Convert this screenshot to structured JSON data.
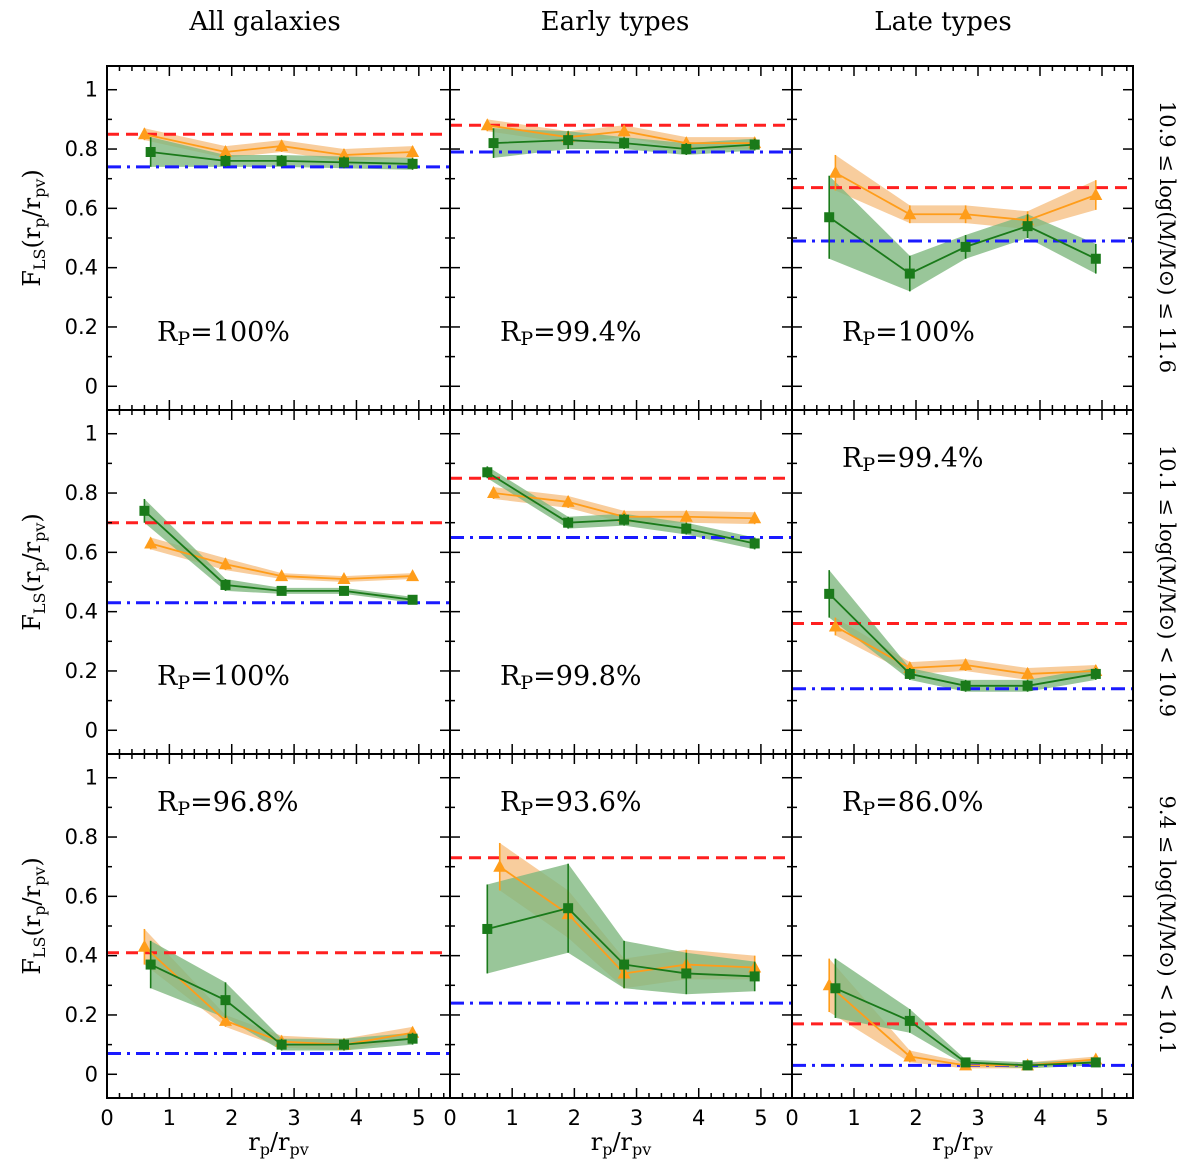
{
  "figure": {
    "column_titles": [
      "All galaxies",
      "Early types",
      "Late types"
    ],
    "row_labels": [
      "10.9 ≤ log(M/M⊙) ≤ 11.6",
      "10.1 ≤ log(M/M⊙) < 10.9",
      "9.4 ≤ log(M/M⊙) < 10.1"
    ],
    "xlabel": "rp/rpv",
    "ylabel": "FLS(rp/rpv)",
    "x_ticks": [
      0,
      1,
      2,
      3,
      4,
      5
    ],
    "y_ticks": [
      0,
      0.2,
      0.4,
      0.6,
      0.8,
      1
    ],
    "y_tick_labels": [
      "0",
      "0.2",
      "0.4",
      "0.6",
      "0.8",
      "1"
    ],
    "colors": {
      "orange": "#ff9d1a",
      "orange_band": "#f7c48c",
      "green": "#1a7a1a",
      "green_band": "#7fb87f",
      "red_dashed": "#ff2020",
      "blue_dashdot": "#1a1aff"
    }
  },
  "chart_data": [
    {
      "type": "line",
      "panel": "All galaxies / 10.9-11.6",
      "xlim": [
        0,
        5.5
      ],
      "ylim": [
        -0.08,
        1.08
      ],
      "rp_label": "RP=100%",
      "rp_pos": "bottom",
      "red_level": 0.85,
      "blue_level": 0.74,
      "series": [
        {
          "key": "orange",
          "x": [
            0.6,
            1.9,
            2.8,
            3.8,
            4.9
          ],
          "y": [
            0.85,
            0.79,
            0.81,
            0.78,
            0.79
          ],
          "err": [
            0.02,
            0.02,
            0.02,
            0.02,
            0.02
          ]
        },
        {
          "key": "green",
          "x": [
            0.7,
            1.9,
            2.8,
            3.8,
            4.9
          ],
          "y": [
            0.79,
            0.76,
            0.76,
            0.755,
            0.75
          ],
          "err": [
            0.05,
            0.02,
            0.02,
            0.02,
            0.02
          ]
        }
      ]
    },
    {
      "type": "line",
      "panel": "Early types / 10.9-11.6",
      "xlim": [
        0,
        5.5
      ],
      "ylim": [
        -0.08,
        1.08
      ],
      "rp_label": "RP=99.4%",
      "rp_pos": "bottom",
      "red_level": 0.88,
      "blue_level": 0.79,
      "series": [
        {
          "key": "orange",
          "x": [
            0.6,
            1.9,
            2.8,
            3.8,
            4.9
          ],
          "y": [
            0.88,
            0.84,
            0.86,
            0.82,
            0.82
          ],
          "err": [
            0.02,
            0.02,
            0.02,
            0.02,
            0.02
          ]
        },
        {
          "key": "green",
          "x": [
            0.7,
            1.9,
            2.8,
            3.8,
            4.9
          ],
          "y": [
            0.82,
            0.83,
            0.82,
            0.8,
            0.815
          ],
          "err": [
            0.05,
            0.03,
            0.02,
            0.02,
            0.02
          ]
        }
      ]
    },
    {
      "type": "line",
      "panel": "Late types / 10.9-11.6",
      "xlim": [
        0,
        5.5
      ],
      "ylim": [
        -0.08,
        1.08
      ],
      "rp_label": "RP=100%",
      "rp_pos": "bottom",
      "red_level": 0.67,
      "blue_level": 0.49,
      "series": [
        {
          "key": "orange",
          "x": [
            0.7,
            1.9,
            2.8,
            3.8,
            4.9
          ],
          "y": [
            0.72,
            0.58,
            0.58,
            0.56,
            0.645
          ],
          "err": [
            0.06,
            0.03,
            0.03,
            0.03,
            0.05
          ]
        },
        {
          "key": "green",
          "x": [
            0.6,
            1.9,
            2.8,
            3.8,
            4.9
          ],
          "y": [
            0.57,
            0.38,
            0.47,
            0.54,
            0.43
          ],
          "err": [
            0.14,
            0.06,
            0.04,
            0.04,
            0.05
          ]
        }
      ]
    },
    {
      "type": "line",
      "panel": "All galaxies / 10.1-10.9",
      "xlim": [
        0,
        5.5
      ],
      "ylim": [
        -0.08,
        1.08
      ],
      "rp_label": "RP=100%",
      "rp_pos": "bottom",
      "red_level": 0.7,
      "blue_level": 0.43,
      "series": [
        {
          "key": "orange",
          "x": [
            0.7,
            1.9,
            2.8,
            3.8,
            4.9
          ],
          "y": [
            0.63,
            0.56,
            0.52,
            0.51,
            0.52
          ],
          "err": [
            0.02,
            0.02,
            0.01,
            0.01,
            0.01
          ]
        },
        {
          "key": "green",
          "x": [
            0.6,
            1.9,
            2.8,
            3.8,
            4.9
          ],
          "y": [
            0.74,
            0.49,
            0.47,
            0.47,
            0.44
          ],
          "err": [
            0.04,
            0.02,
            0.01,
            0.01,
            0.01
          ]
        }
      ]
    },
    {
      "type": "line",
      "panel": "Early types / 10.1-10.9",
      "xlim": [
        0,
        5.5
      ],
      "ylim": [
        -0.08,
        1.08
      ],
      "rp_label": "RP=99.8%",
      "rp_pos": "bottom",
      "red_level": 0.85,
      "blue_level": 0.65,
      "series": [
        {
          "key": "orange",
          "x": [
            0.7,
            1.9,
            2.8,
            3.8,
            4.9
          ],
          "y": [
            0.8,
            0.77,
            0.72,
            0.72,
            0.715
          ],
          "err": [
            0.02,
            0.02,
            0.02,
            0.02,
            0.02
          ]
        },
        {
          "key": "green",
          "x": [
            0.6,
            1.9,
            2.8,
            3.8,
            4.9
          ],
          "y": [
            0.87,
            0.7,
            0.71,
            0.68,
            0.63
          ],
          "err": [
            0.02,
            0.02,
            0.02,
            0.02,
            0.02
          ]
        }
      ]
    },
    {
      "type": "line",
      "panel": "Late types / 10.1-10.9",
      "xlim": [
        0,
        5.5
      ],
      "ylim": [
        -0.08,
        1.08
      ],
      "rp_label": "RP=99.4%",
      "rp_pos": "top",
      "red_level": 0.36,
      "blue_level": 0.14,
      "series": [
        {
          "key": "orange",
          "x": [
            0.7,
            1.9,
            2.8,
            3.8,
            4.9
          ],
          "y": [
            0.35,
            0.21,
            0.22,
            0.19,
            0.2
          ],
          "err": [
            0.03,
            0.02,
            0.02,
            0.02,
            0.02
          ]
        },
        {
          "key": "green",
          "x": [
            0.6,
            1.9,
            2.8,
            3.8,
            4.9
          ],
          "y": [
            0.46,
            0.19,
            0.15,
            0.15,
            0.19
          ],
          "err": [
            0.08,
            0.02,
            0.02,
            0.02,
            0.02
          ]
        }
      ]
    },
    {
      "type": "line",
      "panel": "All galaxies / 9.4-10.1",
      "xlim": [
        0,
        5.5
      ],
      "ylim": [
        -0.08,
        1.08
      ],
      "rp_label": "RP=96.8%",
      "rp_pos": "top",
      "red_level": 0.41,
      "blue_level": 0.07,
      "series": [
        {
          "key": "orange",
          "x": [
            0.6,
            1.9,
            2.8,
            3.8,
            4.9
          ],
          "y": [
            0.43,
            0.18,
            0.11,
            0.1,
            0.14
          ],
          "err": [
            0.06,
            0.02,
            0.02,
            0.02,
            0.02
          ]
        },
        {
          "key": "green",
          "x": [
            0.7,
            1.9,
            2.8,
            3.8,
            4.9
          ],
          "y": [
            0.37,
            0.25,
            0.1,
            0.1,
            0.12
          ],
          "err": [
            0.08,
            0.06,
            0.02,
            0.02,
            0.02
          ]
        }
      ]
    },
    {
      "type": "line",
      "panel": "Early types / 9.4-10.1",
      "xlim": [
        0,
        5.5
      ],
      "ylim": [
        -0.08,
        1.08
      ],
      "rp_label": "RP=93.6%",
      "rp_pos": "top",
      "red_level": 0.73,
      "blue_level": 0.24,
      "series": [
        {
          "key": "orange",
          "x": [
            0.8,
            1.9,
            2.8,
            3.8,
            4.9
          ],
          "y": [
            0.7,
            0.54,
            0.34,
            0.37,
            0.36
          ],
          "err": [
            0.08,
            0.08,
            0.05,
            0.05,
            0.04
          ]
        },
        {
          "key": "green",
          "x": [
            0.6,
            1.9,
            2.8,
            3.8,
            4.9
          ],
          "y": [
            0.49,
            0.56,
            0.37,
            0.34,
            0.33
          ],
          "err": [
            0.15,
            0.15,
            0.08,
            0.07,
            0.05
          ]
        }
      ]
    },
    {
      "type": "line",
      "panel": "Late types / 9.4-10.1",
      "xlim": [
        0,
        5.5
      ],
      "ylim": [
        -0.08,
        1.08
      ],
      "rp_label": "RP=86.0%",
      "rp_pos": "top",
      "red_level": 0.17,
      "blue_level": 0.03,
      "series": [
        {
          "key": "orange",
          "x": [
            0.6,
            1.9,
            2.8,
            3.8,
            4.9
          ],
          "y": [
            0.3,
            0.06,
            0.03,
            0.03,
            0.05
          ],
          "err": [
            0.09,
            0.02,
            0.01,
            0.01,
            0.01
          ]
        },
        {
          "key": "green",
          "x": [
            0.7,
            1.9,
            2.8,
            3.8,
            4.9
          ],
          "y": [
            0.29,
            0.18,
            0.04,
            0.03,
            0.04
          ],
          "err": [
            0.1,
            0.04,
            0.01,
            0.01,
            0.01
          ]
        }
      ]
    }
  ]
}
